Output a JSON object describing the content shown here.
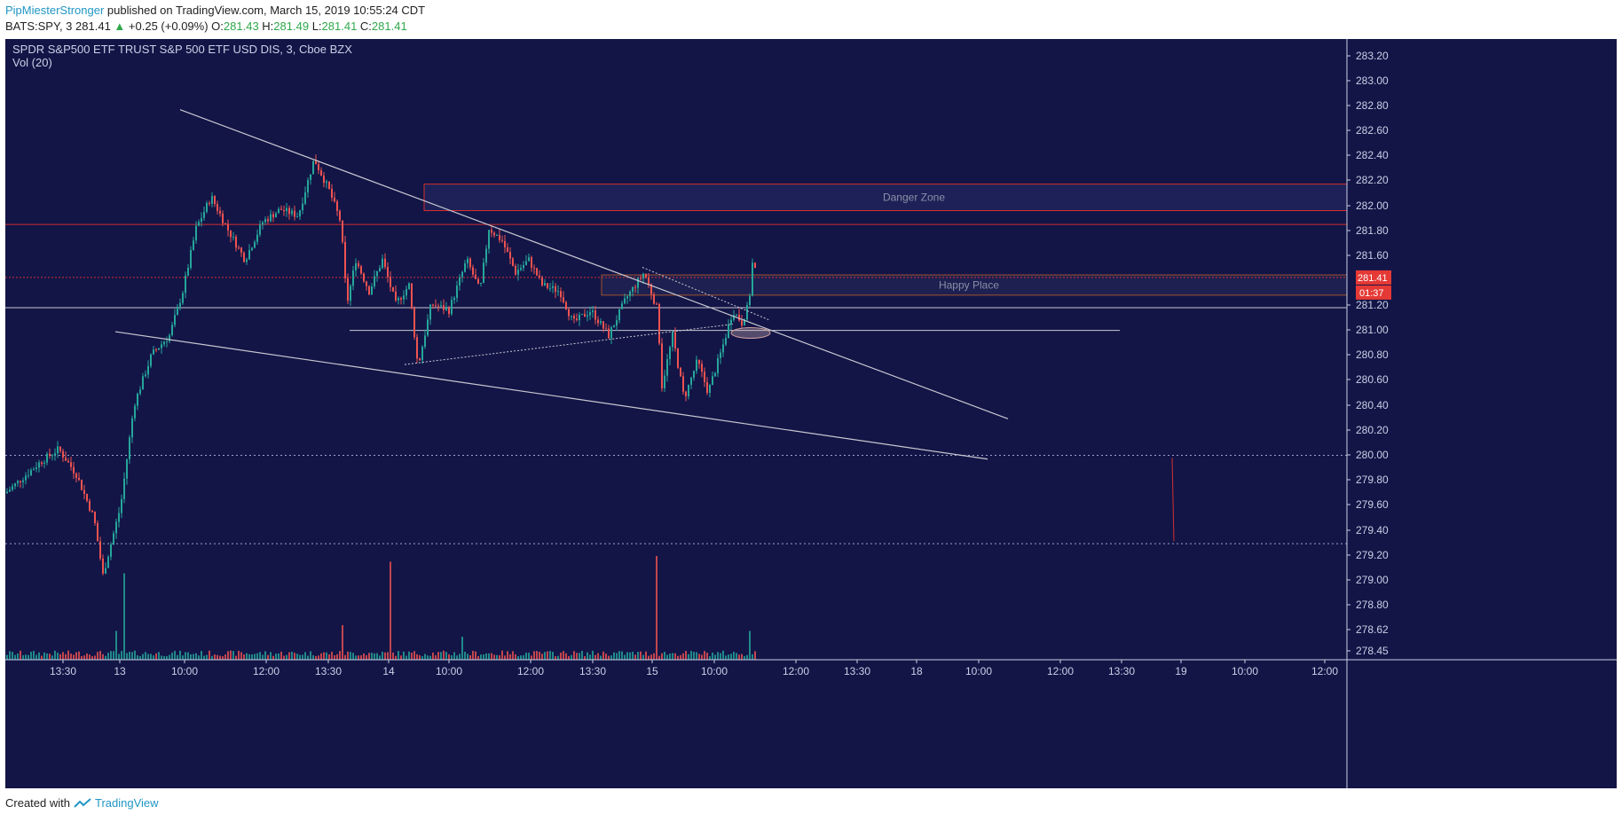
{
  "header": {
    "author": "PipMiesterStronger",
    "published": "published on TradingView.com, March 15, 2019 10:55:24 CDT",
    "symbol": "BATS:SPY, 3",
    "price": "281.41",
    "change": "+0.25 (+0.09%)",
    "o_label": "O:",
    "o_value": "281.43",
    "h_label": "H:",
    "h_value": "281.49",
    "l_label": "L:",
    "l_value": "281.41",
    "c_label": "C:",
    "c_value": "281.41"
  },
  "footer": {
    "created_with": "Created with",
    "brand": "TradingView"
  },
  "colors": {
    "background": "#131547",
    "up": "#26a69a",
    "down": "#ef5350",
    "trendline": "#c8c8d0",
    "zone_border": "#d32f2f",
    "happy_border": "#a0522d",
    "price_tag": "#e53935"
  },
  "chart_data": {
    "type": "candlestick",
    "title": "SPDR S&P500 ETF TRUST S&P 500 ETF USD DIS, 3, Cboe BZX",
    "indicator": "Vol (20)",
    "y_ticks": [
      "283.20",
      "283.00",
      "282.80",
      "282.60",
      "282.40",
      "282.20",
      "282.00",
      "281.80",
      "281.60",
      "281.20",
      "281.00",
      "280.80",
      "280.60",
      "280.40",
      "280.20",
      "280.00",
      "279.80",
      "279.60",
      "279.40",
      "279.20",
      "279.00",
      "278.80",
      "278.62",
      "278.45"
    ],
    "x_ticks": [
      "13:30",
      "13",
      "10:00",
      "12:00",
      "13:30",
      "14",
      "10:00",
      "12:00",
      "13:30",
      "15",
      "10:00",
      "12:00",
      "13:30",
      "18",
      "10:00",
      "12:00",
      "13:30",
      "19",
      "10:00",
      "12:00"
    ],
    "ylim": [
      278.38,
      283.3
    ],
    "last_price": "281.41",
    "countdown": "01:37",
    "annotations": [
      {
        "label": "Danger Zone",
        "y_top": 282.15,
        "y_bottom": 281.94
      },
      {
        "label": "Happy Place",
        "y_top": 281.43,
        "y_bottom": 281.27
      }
    ],
    "levels": {
      "resistance_red": 281.83,
      "support_white_1": 281.17,
      "support_white_2": 280.99,
      "dotted_upper": 280.0,
      "dotted_lower": 279.3
    },
    "price_path": [
      {
        "x": 0,
        "y": 279.7
      },
      {
        "x": 40,
        "y": 279.95
      },
      {
        "x": 60,
        "y": 280.05
      },
      {
        "x": 80,
        "y": 279.85
      },
      {
        "x": 100,
        "y": 279.5
      },
      {
        "x": 110,
        "y": 279.05
      },
      {
        "x": 130,
        "y": 279.6
      },
      {
        "x": 145,
        "y": 280.4
      },
      {
        "x": 165,
        "y": 280.8
      },
      {
        "x": 185,
        "y": 280.95
      },
      {
        "x": 200,
        "y": 281.3
      },
      {
        "x": 215,
        "y": 281.8
      },
      {
        "x": 232,
        "y": 282.05
      },
      {
        "x": 250,
        "y": 281.8
      },
      {
        "x": 270,
        "y": 281.55
      },
      {
        "x": 290,
        "y": 281.85
      },
      {
        "x": 310,
        "y": 281.95
      },
      {
        "x": 330,
        "y": 281.9
      },
      {
        "x": 348,
        "y": 282.35
      },
      {
        "x": 365,
        "y": 282.1
      },
      {
        "x": 378,
        "y": 281.85
      },
      {
        "x": 385,
        "y": 281.2
      },
      {
        "x": 395,
        "y": 281.55
      },
      {
        "x": 410,
        "y": 281.3
      },
      {
        "x": 425,
        "y": 281.55
      },
      {
        "x": 440,
        "y": 281.2
      },
      {
        "x": 455,
        "y": 281.35
      },
      {
        "x": 465,
        "y": 280.7
      },
      {
        "x": 480,
        "y": 281.2
      },
      {
        "x": 500,
        "y": 281.15
      },
      {
        "x": 520,
        "y": 281.55
      },
      {
        "x": 535,
        "y": 281.3
      },
      {
        "x": 545,
        "y": 281.8
      },
      {
        "x": 560,
        "y": 281.7
      },
      {
        "x": 575,
        "y": 281.45
      },
      {
        "x": 590,
        "y": 281.55
      },
      {
        "x": 605,
        "y": 281.35
      },
      {
        "x": 625,
        "y": 281.3
      },
      {
        "x": 640,
        "y": 281.05
      },
      {
        "x": 660,
        "y": 281.15
      },
      {
        "x": 680,
        "y": 280.95
      },
      {
        "x": 700,
        "y": 281.25
      },
      {
        "x": 720,
        "y": 281.45
      },
      {
        "x": 735,
        "y": 281.15
      },
      {
        "x": 740,
        "y": 280.55
      },
      {
        "x": 752,
        "y": 280.95
      },
      {
        "x": 765,
        "y": 280.45
      },
      {
        "x": 780,
        "y": 280.75
      },
      {
        "x": 792,
        "y": 280.5
      },
      {
        "x": 808,
        "y": 280.85
      },
      {
        "x": 820,
        "y": 281.15
      },
      {
        "x": 830,
        "y": 281.05
      },
      {
        "x": 838,
        "y": 281.2
      },
      {
        "x": 843,
        "y": 281.6
      },
      {
        "x": 846,
        "y": 281.41
      }
    ],
    "volume_spikes": [
      {
        "x": 135,
        "v": 0.75
      },
      {
        "x": 433,
        "v": 0.85
      },
      {
        "x": 733,
        "v": 0.9
      },
      {
        "x": 380,
        "v": 0.3
      },
      {
        "x": 125,
        "v": 0.25
      },
      {
        "x": 515,
        "v": 0.2
      },
      {
        "x": 840,
        "v": 0.25
      }
    ]
  }
}
